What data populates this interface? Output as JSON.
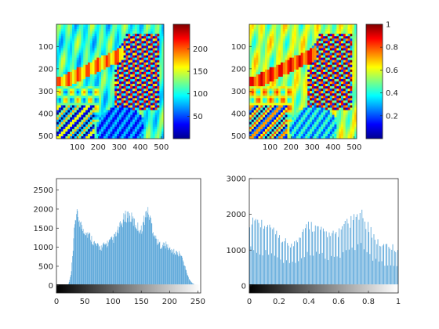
{
  "colors": {
    "histogram_bars": "#4d9fd6",
    "axes": "#262626",
    "background": "#ffffff",
    "colormap": "jet"
  },
  "chart_data": [
    {
      "type": "heatmap",
      "subplot": "top-left",
      "description_of_image": "grayscale photo displayed with jet colormap (raw intensities)",
      "x_ticks": [
        "100",
        "200",
        "300",
        "400",
        "500"
      ],
      "y_ticks": [
        "100",
        "200",
        "300",
        "400",
        "500"
      ],
      "xlim": [
        1,
        512
      ],
      "ylim": [
        1,
        512
      ],
      "y_reversed": true,
      "colorbar": {
        "ticks": [
          "50",
          "100",
          "150",
          "200"
        ],
        "range": [
          0,
          255
        ],
        "colormap": "jet"
      }
    },
    {
      "type": "heatmap",
      "subplot": "top-right",
      "description_of_image": "same photo after histogram equalization, normalized 0..1, jet colormap",
      "x_ticks": [
        "100",
        "200",
        "300",
        "400",
        "500"
      ],
      "y_ticks": [
        "100",
        "200",
        "300",
        "400",
        "500"
      ],
      "xlim": [
        1,
        512
      ],
      "ylim": [
        1,
        512
      ],
      "y_reversed": true,
      "colorbar": {
        "ticks": [
          "0.2",
          "0.4",
          "0.6",
          "0.8",
          "1"
        ],
        "range": [
          0,
          1
        ],
        "colormap": "jet"
      }
    },
    {
      "type": "bar",
      "subplot": "bottom-left",
      "title": "",
      "xlabel": "",
      "ylabel": "",
      "xlim": [
        0,
        255
      ],
      "ylim": [
        -200,
        2800
      ],
      "x_ticks": [
        "0",
        "50",
        "100",
        "150",
        "200",
        "250"
      ],
      "y_ticks": [
        "0",
        "500",
        "1000",
        "1500",
        "2000",
        "2500"
      ],
      "grayscale_bar": true,
      "profile_x": [
        0,
        20,
        22,
        26,
        30,
        32,
        35,
        40,
        45,
        50,
        55,
        60,
        65,
        70,
        75,
        80,
        85,
        90,
        95,
        100,
        105,
        110,
        115,
        120,
        125,
        130,
        135,
        140,
        145,
        150,
        155,
        160,
        165,
        170,
        175,
        180,
        185,
        190,
        195,
        200,
        205,
        210,
        215,
        220,
        225,
        230,
        235,
        240,
        245,
        255
      ],
      "profile_y": [
        0,
        0,
        60,
        300,
        1000,
        1650,
        1850,
        1750,
        1500,
        1450,
        1350,
        1280,
        1150,
        1050,
        1000,
        1000,
        1050,
        1100,
        1150,
        1200,
        1300,
        1450,
        1600,
        1750,
        1850,
        1800,
        1700,
        1600,
        1500,
        1450,
        1700,
        1950,
        1800,
        1500,
        1250,
        1100,
        1050,
        1050,
        1050,
        950,
        900,
        850,
        850,
        800,
        600,
        350,
        150,
        60,
        20,
        0
      ]
    },
    {
      "type": "bar",
      "subplot": "bottom-right",
      "title": "",
      "xlabel": "",
      "ylabel": "",
      "xlim": [
        0,
        1
      ],
      "ylim": [
        -200,
        3000
      ],
      "x_ticks": [
        "0",
        "0.2",
        "0.4",
        "0.6",
        "0.8",
        "1"
      ],
      "y_ticks": [
        "0",
        "1000",
        "2000",
        "3000"
      ],
      "grayscale_bar": true,
      "profile_x": [
        0,
        0.02,
        0.05,
        0.1,
        0.15,
        0.2,
        0.25,
        0.3,
        0.35,
        0.4,
        0.45,
        0.5,
        0.55,
        0.6,
        0.65,
        0.7,
        0.75,
        0.8,
        0.85,
        0.9,
        0.95,
        1.0
      ],
      "profile_y": [
        1800,
        1900,
        1800,
        1700,
        1600,
        1300,
        1200,
        1150,
        1500,
        1700,
        1650,
        1500,
        1400,
        1500,
        1700,
        1850,
        2000,
        1600,
        1300,
        1100,
        1100,
        1000
      ]
    }
  ]
}
